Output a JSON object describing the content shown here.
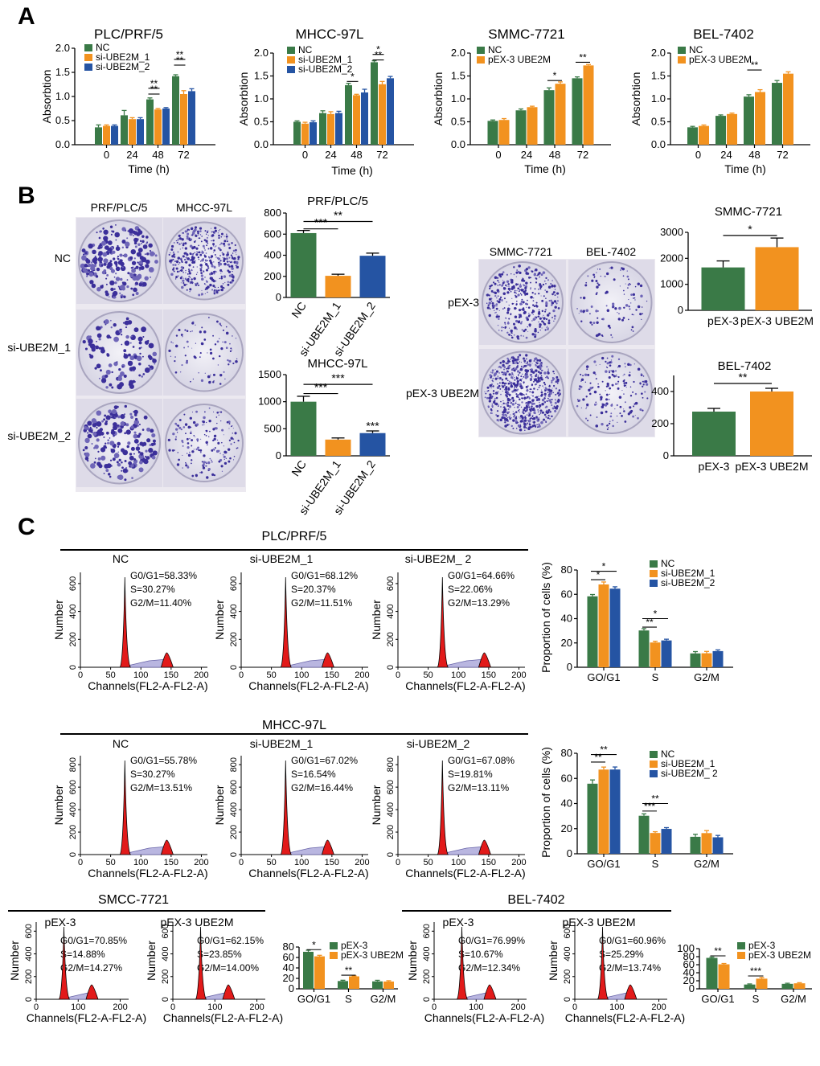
{
  "figure": {
    "panel_letters": [
      "A",
      "B",
      "C"
    ]
  },
  "colors": {
    "nc": "#3a7a47",
    "si1": "#f2921f",
    "si2": "#2554a3",
    "pex": "#3a7a47",
    "pexube": "#f2921f"
  },
  "panel_b_images": {
    "group1": {
      "col_labels": [
        "PRF/PLC/5",
        "MHCC-97L"
      ],
      "row_labels": [
        "NC",
        "si-UBE2M_1",
        "si-UBE2M_2"
      ]
    },
    "group2": {
      "col_labels": [
        "SMMC-7721",
        "BEL-7402"
      ],
      "row_labels": [
        "pEX-3",
        "pEX-3 UBE2M"
      ]
    }
  },
  "chart_data": [
    {
      "id": "A1",
      "type": "bar",
      "title": "PLC/PRF/5",
      "xlabel": "Time (h)",
      "ylabel": "Absorbtion",
      "categories": [
        "0",
        "24",
        "48",
        "72"
      ],
      "ylim": [
        0,
        2.0
      ],
      "yticks": [
        "0.0",
        "0.5",
        "1.0",
        "1.5",
        "2.0"
      ],
      "ytick_values": [
        0,
        0.5,
        1.0,
        1.5,
        2.0
      ],
      "legend": [
        "NC",
        "si-UBE2M_1",
        "si-UBE2M_2"
      ],
      "series": [
        {
          "name": "NC",
          "values": [
            0.36,
            0.61,
            0.94,
            1.42
          ],
          "errors": [
            0.05,
            0.1,
            0.03,
            0.03
          ]
        },
        {
          "name": "si-UBE2M_1",
          "values": [
            0.39,
            0.53,
            0.73,
            1.05
          ],
          "errors": [
            0.02,
            0.03,
            0.02,
            0.07
          ]
        },
        {
          "name": "si-UBE2M_2",
          "values": [
            0.39,
            0.53,
            0.75,
            1.11
          ],
          "errors": [
            0.02,
            0.03,
            0.02,
            0.05
          ]
        }
      ],
      "sig": [
        {
          "label": "**",
          "y": 1.05
        },
        {
          "label": "**",
          "y": 1.17
        },
        {
          "label": "**",
          "y": 1.65
        },
        {
          "label": "**",
          "y": 1.77
        }
      ]
    },
    {
      "id": "A2",
      "type": "bar",
      "title": "MHCC-97L",
      "xlabel": "Time (h)",
      "ylabel": "Absorbtion",
      "categories": [
        "0",
        "24",
        "48",
        "72"
      ],
      "ylim": [
        0,
        2.0
      ],
      "yticks": [
        "0.0",
        "0.5",
        "1.0",
        "1.5",
        "2.0"
      ],
      "ytick_values": [
        0,
        0.5,
        1.0,
        1.5,
        2.0
      ],
      "legend": [
        "NC",
        "si-UBE2M_1",
        "si-UBE2M_2"
      ],
      "series": [
        {
          "name": "NC",
          "values": [
            0.5,
            0.69,
            1.3,
            1.8
          ],
          "errors": [
            0.02,
            0.05,
            0.04,
            0.03
          ]
        },
        {
          "name": "si-UBE2M_1",
          "values": [
            0.46,
            0.67,
            1.08,
            1.32
          ],
          "errors": [
            0.03,
            0.05,
            0.02,
            0.06
          ]
        },
        {
          "name": "si-UBE2M_2",
          "values": [
            0.49,
            0.69,
            1.14,
            1.45
          ],
          "errors": [
            0.03,
            0.04,
            0.07,
            0.04
          ]
        }
      ],
      "sig": [
        {
          "label": "*",
          "y": 1.38
        },
        {
          "label": "**",
          "y": 1.85
        },
        {
          "label": "*",
          "y": 1.97
        }
      ]
    },
    {
      "id": "A3",
      "type": "bar",
      "title": "SMMC-7721",
      "xlabel": "Time (h)",
      "ylabel": "Absorbtion",
      "categories": [
        "0",
        "24",
        "48",
        "72"
      ],
      "ylim": [
        0,
        2.0
      ],
      "yticks": [
        "0.0",
        "0.5",
        "1.0",
        "1.5",
        "2.0"
      ],
      "ytick_values": [
        0,
        0.5,
        1.0,
        1.5,
        2.0
      ],
      "legend": [
        "NC",
        "pEX-3 UBE2M"
      ],
      "series": [
        {
          "name": "NC",
          "values": [
            0.52,
            0.75,
            1.19,
            1.45
          ],
          "errors": [
            0.02,
            0.03,
            0.05,
            0.03
          ]
        },
        {
          "name": "pEX-3 UBE2M",
          "values": [
            0.54,
            0.82,
            1.33,
            1.73
          ],
          "errors": [
            0.03,
            0.02,
            0.04,
            0.02
          ]
        }
      ],
      "sig": [
        {
          "label": "*",
          "y": 1.4
        },
        {
          "label": "**",
          "y": 1.8
        }
      ]
    },
    {
      "id": "A4",
      "type": "bar",
      "title": "BEL-7402",
      "xlabel": "Time (h)",
      "ylabel": "Absorbtion",
      "categories": [
        "0",
        "24",
        "48",
        "72"
      ],
      "ylim": [
        0,
        2.0
      ],
      "yticks": [
        "0.0",
        "0.5",
        "1.0",
        "1.5",
        "2.0"
      ],
      "ytick_values": [
        0,
        0.5,
        1.0,
        1.5,
        2.0
      ],
      "legend": [
        "NC",
        "pEX-3 UBE2M"
      ],
      "series": [
        {
          "name": "NC",
          "values": [
            0.38,
            0.63,
            1.05,
            1.35
          ],
          "errors": [
            0.02,
            0.02,
            0.04,
            0.05
          ]
        },
        {
          "name": "pEX-3 UBE2M",
          "values": [
            0.41,
            0.67,
            1.15,
            1.55
          ],
          "errors": [
            0.02,
            0.02,
            0.05,
            0.04
          ]
        }
      ],
      "sig": [
        {
          "label": "**",
          "y": 1.63
        }
      ]
    },
    {
      "id": "B1",
      "type": "bar",
      "title": "PRF/PLC/5",
      "categories": [
        "NC",
        "si-UBE2M_1",
        "si-UBE2M_2"
      ],
      "values": [
        610,
        205,
        395
      ],
      "errors": [
        25,
        15,
        25
      ],
      "ylim": [
        0,
        800
      ],
      "yticks": [
        "0",
        "200",
        "400",
        "600",
        "800"
      ],
      "ytick_values": [
        0,
        200,
        400,
        600,
        800
      ],
      "sig": [
        {
          "label": "***",
          "y": 650
        },
        {
          "label": "**",
          "y": 720
        }
      ]
    },
    {
      "id": "B2",
      "type": "bar",
      "title": "MHCC-97L",
      "categories": [
        "NC",
        "si-UBE2M_1",
        "si-UBE2M_2"
      ],
      "values": [
        1000,
        300,
        420
      ],
      "errors": [
        100,
        30,
        40
      ],
      "ylim": [
        0,
        1500
      ],
      "yticks": [
        "0",
        "500",
        "1000",
        "1500"
      ],
      "ytick_values": [
        0,
        500,
        1000,
        1500
      ],
      "sig": [
        {
          "label": "***",
          "y": 1150
        },
        {
          "label": "***",
          "y": 1320
        },
        {
          "label": "***",
          "y": 480
        }
      ]
    },
    {
      "id": "B3",
      "type": "bar",
      "title": "SMMC-7721",
      "categories": [
        "pEX-3",
        "pEX-3 UBE2M"
      ],
      "values": [
        1650,
        2430
      ],
      "errors": [
        250,
        350
      ],
      "ylim": [
        0,
        3000
      ],
      "yticks": [
        "0",
        "1000",
        "2000",
        "3000"
      ],
      "ytick_values": [
        0,
        1000,
        2000,
        3000
      ],
      "sig": [
        {
          "label": "*",
          "y": 2880
        }
      ]
    },
    {
      "id": "B4",
      "type": "bar",
      "title": "BEL-7402",
      "categories": [
        "pEX-3",
        "pEX-3 UBE2M"
      ],
      "values": [
        275,
        400
      ],
      "errors": [
        20,
        20
      ],
      "ylim": [
        0,
        500
      ],
      "yticks": [
        "0",
        "200",
        "400"
      ],
      "ytick_values": [
        0,
        200,
        400
      ],
      "sig": [
        {
          "label": "**",
          "y": 450
        }
      ]
    },
    {
      "id": "C1",
      "type": "bar",
      "ylabel": "Proportion of cells (%)",
      "categories": [
        "GO/G1",
        "S",
        "G2/M"
      ],
      "ylim": [
        0,
        80
      ],
      "yticks": [
        "0",
        "20",
        "40",
        "60",
        "80"
      ],
      "ytick_values": [
        0,
        20,
        40,
        60,
        80
      ],
      "legend": [
        "NC",
        "si-UBE2M_1",
        "si-UBE2M_2"
      ],
      "series": [
        {
          "name": "NC",
          "values": [
            58.33,
            30.27,
            11.4
          ],
          "errors": [
            1.5,
            1.5,
            1.5
          ]
        },
        {
          "name": "si-UBE2M_1",
          "values": [
            68.12,
            20.37,
            11.51
          ],
          "errors": [
            2,
            1,
            1.5
          ]
        },
        {
          "name": "si-UBE2M_2",
          "values": [
            64.66,
            22.06,
            13.29
          ],
          "errors": [
            1.5,
            1,
            1
          ]
        }
      ],
      "sig": [
        {
          "label": "*",
          "y": 72
        },
        {
          "label": "*",
          "y": 79
        },
        {
          "label": "**",
          "y": 33
        },
        {
          "label": "*",
          "y": 40
        }
      ]
    },
    {
      "id": "C2",
      "type": "bar",
      "ylabel": "Proportion of cells (%)",
      "categories": [
        "GO/G1",
        "S",
        "G2/M"
      ],
      "ylim": [
        0,
        80
      ],
      "yticks": [
        "0",
        "20",
        "40",
        "60",
        "80"
      ],
      "ytick_values": [
        0,
        20,
        40,
        60,
        80
      ],
      "legend": [
        "NC",
        "si-UBE2M_1",
        "si-UBE2M_ 2"
      ],
      "series": [
        {
          "name": "NC",
          "values": [
            55.78,
            30.27,
            13.51
          ],
          "errors": [
            3,
            1.5,
            2
          ]
        },
        {
          "name": "si-UBE2M_1",
          "values": [
            67.02,
            16.54,
            16.44
          ],
          "errors": [
            2,
            1,
            2
          ]
        },
        {
          "name": "si-UBE2M_2",
          "values": [
            67.08,
            19.81,
            13.11
          ],
          "errors": [
            2,
            1,
            1.5
          ]
        }
      ],
      "sig": [
        {
          "label": "**",
          "y": 73
        },
        {
          "label": "**",
          "y": 79
        },
        {
          "label": "***",
          "y": 34
        },
        {
          "label": "**",
          "y": 40
        }
      ]
    },
    {
      "id": "C3",
      "type": "bar",
      "categories": [
        "GO/G1",
        "S",
        "G2/M"
      ],
      "ylim": [
        0,
        80
      ],
      "yticks": [
        "0",
        "20",
        "40",
        "60",
        "80"
      ],
      "ytick_values": [
        0,
        20,
        40,
        60,
        80
      ],
      "legend": [
        "pEX-3",
        "pEX-3 UBE2M"
      ],
      "series": [
        {
          "name": "pEX-3",
          "values": [
            70.85,
            14.88,
            14.27
          ],
          "errors": [
            3,
            1.5,
            2
          ]
        },
        {
          "name": "pEX-3 UBE2M",
          "values": [
            62.15,
            23.85,
            14.0
          ],
          "errors": [
            2,
            1,
            1.5
          ]
        }
      ],
      "sig": [
        {
          "label": "*",
          "y": 75
        },
        {
          "label": "**",
          "y": 26
        }
      ]
    },
    {
      "id": "C4",
      "type": "bar",
      "categories": [
        "GO/G1",
        "S",
        "G2/M"
      ],
      "ylim": [
        0,
        100
      ],
      "yticks": [
        "0",
        "20",
        "40",
        "60",
        "80",
        "100"
      ],
      "ytick_values": [
        0,
        20,
        40,
        60,
        80,
        100
      ],
      "legend": [
        "pEX-3",
        "pEX-3 UBE2M"
      ],
      "series": [
        {
          "name": "pEX-3",
          "values": [
            76.99,
            10.67,
            12.34
          ],
          "errors": [
            2,
            1.5,
            1.5
          ]
        },
        {
          "name": "pEX-3 UBE2M",
          "values": [
            60.96,
            25.29,
            13.74
          ],
          "errors": [
            2,
            3,
            1.5
          ]
        }
      ],
      "sig": [
        {
          "label": "**",
          "y": 82
        },
        {
          "label": "***",
          "y": 32
        }
      ]
    }
  ],
  "histograms": {
    "axis_xlabel": "Channels(FL2-A-FL2-A)",
    "axis_ylabel": "Number",
    "xticks": [
      "0",
      "50",
      "100",
      "150",
      "200"
    ],
    "xticks_wide": [
      "0",
      "100",
      "200"
    ],
    "yticks": [
      "0",
      "200",
      "400",
      "600"
    ],
    "yticks_mhcc": [
      "0",
      "200",
      "400",
      "600",
      "800"
    ],
    "groups": [
      {
        "title": "PLC/PRF/5",
        "items": [
          {
            "label": "NC",
            "g0g1": "G0/G1=58.33%",
            "s": "S=30.27%",
            "g2m": "G2/M=11.40%"
          },
          {
            "label": "si-UBE2M_1",
            "g0g1": "G0/G1=68.12%",
            "s": "S=20.37%",
            "g2m": "G2/M=11.51%"
          },
          {
            "label": "si-UBE2M_ 2",
            "g0g1": "G0/G1=64.66%",
            "s": "S=22.06%",
            "g2m": "G2/M=13.29%"
          }
        ]
      },
      {
        "title": "MHCC-97L",
        "items": [
          {
            "label": "NC",
            "g0g1": "G0/G1=55.78%",
            "s": "S=30.27%",
            "g2m": "G2/M=13.51%"
          },
          {
            "label": "si-UBE2M_1",
            "g0g1": "G0/G1=67.02%",
            "s": "S=16.54%",
            "g2m": "G2/M=16.44%"
          },
          {
            "label": "si-UBE2M_2",
            "g0g1": "G0/G1=67.08%",
            "s": "S=19.81%",
            "g2m": "G2/M=13.11%"
          }
        ]
      },
      {
        "title": "SMCC-7721",
        "items": [
          {
            "label": "pEX-3",
            "g0g1": "G0/G1=70.85%",
            "s": "S=14.88%",
            "g2m": "G2/M=14.27%"
          },
          {
            "label": "pEX-3 UBE2M",
            "g0g1": "G0/G1=62.15%",
            "s": "S=23.85%",
            "g2m": "G2/M=14.00%"
          }
        ]
      },
      {
        "title": "BEL-7402",
        "items": [
          {
            "label": "pEX-3",
            "g0g1": "G0/G1=76.99%",
            "s": "S=10.67%",
            "g2m": "G2/M=12.34%"
          },
          {
            "label": "pEX-3 UBE2M",
            "g0g1": "G0/G1=60.96%",
            "s": "S=25.29%",
            "g2m": "G2/M=13.74%"
          }
        ]
      }
    ]
  }
}
